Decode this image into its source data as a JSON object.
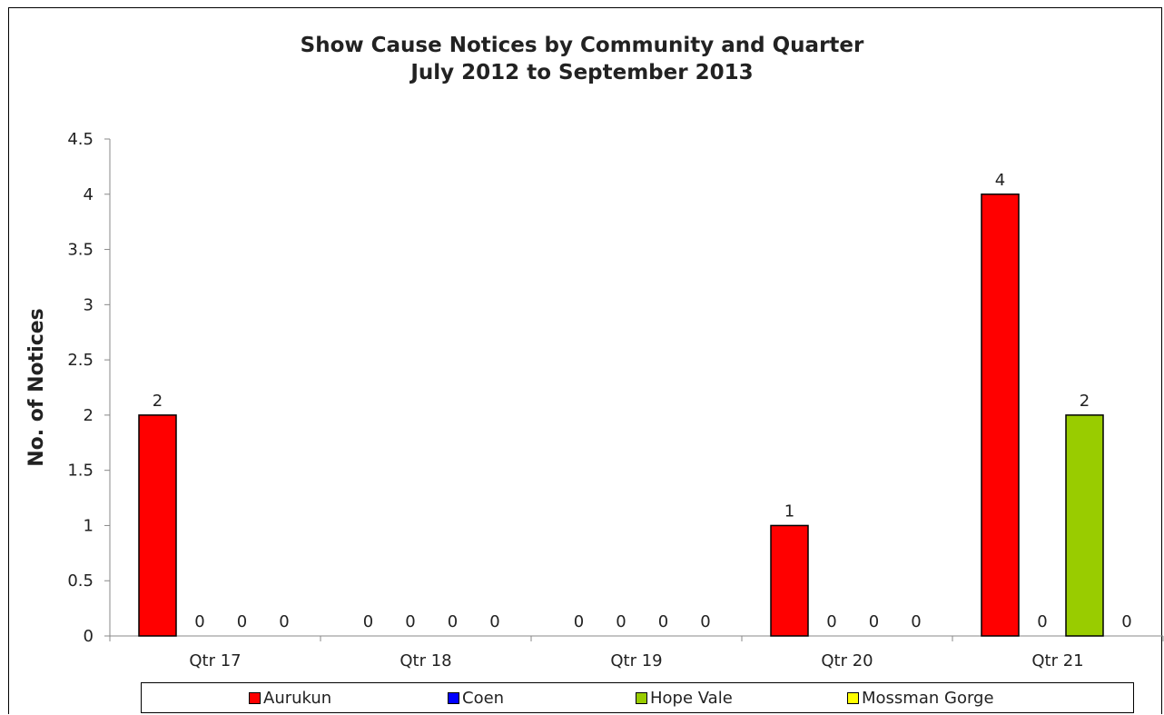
{
  "chart_data": {
    "type": "bar",
    "title": "Show Cause Notices by Community and Quarter",
    "subtitle": "July 2012 to September 2013",
    "xlabel": "",
    "ylabel": "No. of Notices",
    "ylim": [
      0,
      4.5
    ],
    "yticks": [
      "0",
      "0.5",
      "1",
      "1.5",
      "2",
      "2.5",
      "3",
      "3.5",
      "4",
      "4.5"
    ],
    "categories": [
      "Qtr 17",
      "Qtr 18",
      "Qtr 19",
      "Qtr 20",
      "Qtr 21"
    ],
    "series": [
      {
        "name": "Aurukun",
        "color": "#ff0000",
        "values": [
          2,
          0,
          0,
          1,
          4
        ]
      },
      {
        "name": "Coen",
        "color": "#0000ff",
        "values": [
          0,
          0,
          0,
          0,
          0
        ]
      },
      {
        "name": "Hope Vale",
        "color": "#99cc00",
        "values": [
          0,
          0,
          0,
          0,
          2
        ]
      },
      {
        "name": "Mossman Gorge",
        "color": "#ffff00",
        "values": [
          0,
          0,
          0,
          0,
          0
        ]
      }
    ],
    "data_labels": [
      [
        "2",
        "0",
        "0",
        "1",
        "4"
      ],
      [
        "0",
        "0",
        "0",
        "0",
        "0"
      ],
      [
        "0",
        "0",
        "0",
        "0",
        "2"
      ],
      [
        "0",
        "0",
        "0",
        "0",
        "0"
      ]
    ],
    "grid": false,
    "legend_position": "bottom"
  }
}
